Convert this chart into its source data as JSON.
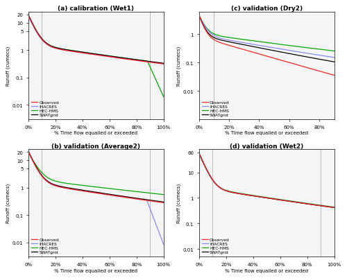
{
  "titles": {
    "a": "(a) calibration (Wet1)",
    "b": "(b) validation (Average2)",
    "c": "(c) validation (Dry2)",
    "d": "(d) validation (Wet2)"
  },
  "xlabel": "% Time flow equalled or exceeded",
  "ylabel": "Runoff (cumecs)",
  "colors": {
    "Observed": "#FF2222",
    "IHACRES": "#8888FF",
    "HEC-HMS": "#00AA00",
    "SWATgrid": "#000000"
  },
  "grey_line_color": "#BBBBBB",
  "background": "#FFFFFF",
  "panel_bg": "#F5F5F5"
}
